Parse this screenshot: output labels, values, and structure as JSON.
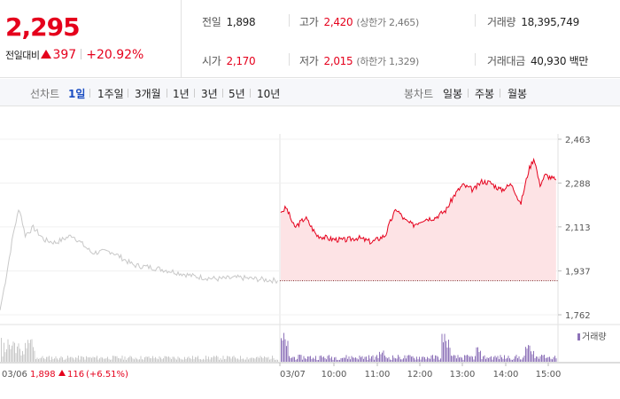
{
  "quote": {
    "price": "2,295",
    "change_label": "전일대비",
    "change_amount": "397",
    "change_rate": "+20.92%"
  },
  "stats": {
    "prev_close": {
      "label": "전일",
      "value": "1,898"
    },
    "open": {
      "label": "시가",
      "value": "2,170"
    },
    "high": {
      "label": "고가",
      "value": "2,420",
      "limit": "(상한가 2,465)"
    },
    "low": {
      "label": "저가",
      "value": "2,015",
      "limit": "(하한가 1,329)"
    },
    "volume": {
      "label": "거래량",
      "value": "18,395,749"
    },
    "amount": {
      "label": "거래대금",
      "value": "40,930 백만"
    }
  },
  "toolbar": {
    "line_label": "선차트",
    "line_periods": [
      "1일",
      "1주일",
      "3개월",
      "1년",
      "3년",
      "5년",
      "10년"
    ],
    "active_period": "1일",
    "candle_label": "봉차트",
    "candle_periods": [
      "일봉",
      "주봉",
      "월봉"
    ]
  },
  "colors": {
    "up": "#e5001c",
    "down": "#1a4dc2",
    "prev_line": "#c8c8c8",
    "fill": "#fde3e5",
    "volume_today": "#8d72b8",
    "volume_prev": "#c8c8c8"
  },
  "chart_data": {
    "type": "line",
    "y_ticks": [
      "2,463",
      "2,288",
      "2,113",
      "1,937",
      "1,762"
    ],
    "ylim": [
      1762,
      2463
    ],
    "prev_close_ref": 1898,
    "prev_day": {
      "date": "03/06",
      "close": "1,898",
      "change": "116",
      "rate": "(+6.51%)",
      "keypoints": [
        [
          0.0,
          1780
        ],
        [
          0.02,
          1900
        ],
        [
          0.05,
          2100
        ],
        [
          0.07,
          2190
        ],
        [
          0.09,
          2080
        ],
        [
          0.12,
          2110
        ],
        [
          0.16,
          2060
        ],
        [
          0.2,
          2050
        ],
        [
          0.26,
          2080
        ],
        [
          0.33,
          2010
        ],
        [
          0.4,
          2015
        ],
        [
          0.48,
          1960
        ],
        [
          0.55,
          1950
        ],
        [
          0.62,
          1935
        ],
        [
          0.7,
          1915
        ],
        [
          0.78,
          1905
        ],
        [
          0.86,
          1910
        ],
        [
          0.94,
          1903
        ],
        [
          1.0,
          1898
        ]
      ]
    },
    "today": {
      "date": "03/07",
      "time_ticks": [
        "10:00",
        "11:00",
        "12:00",
        "13:00",
        "14:00",
        "15:00"
      ],
      "keypoints": [
        [
          0.0,
          2170
        ],
        [
          0.02,
          2190
        ],
        [
          0.05,
          2110
        ],
        [
          0.09,
          2150
        ],
        [
          0.13,
          2080
        ],
        [
          0.18,
          2065
        ],
        [
          0.23,
          2060
        ],
        [
          0.28,
          2070
        ],
        [
          0.33,
          2052
        ],
        [
          0.38,
          2080
        ],
        [
          0.4,
          2140
        ],
        [
          0.42,
          2185
        ],
        [
          0.45,
          2140
        ],
        [
          0.48,
          2120
        ],
        [
          0.52,
          2145
        ],
        [
          0.56,
          2150
        ],
        [
          0.6,
          2180
        ],
        [
          0.63,
          2240
        ],
        [
          0.66,
          2280
        ],
        [
          0.7,
          2260
        ],
        [
          0.73,
          2295
        ],
        [
          0.76,
          2290
        ],
        [
          0.8,
          2260
        ],
        [
          0.84,
          2285
        ],
        [
          0.87,
          2200
        ],
        [
          0.9,
          2340
        ],
        [
          0.92,
          2390
        ],
        [
          0.94,
          2280
        ],
        [
          0.96,
          2320
        ],
        [
          1.0,
          2300
        ]
      ]
    },
    "volume_label": "거래량"
  }
}
